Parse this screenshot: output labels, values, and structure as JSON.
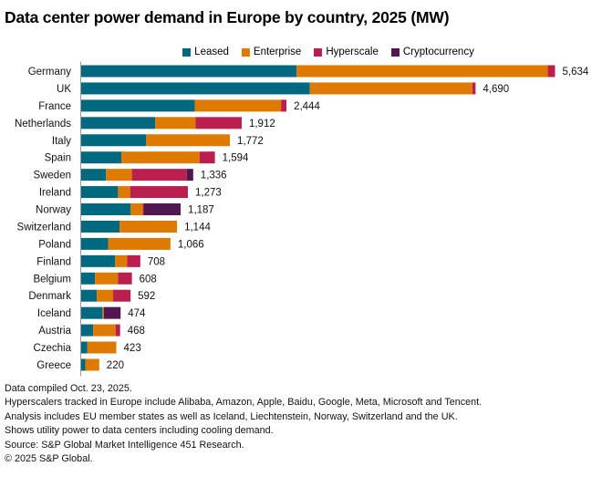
{
  "chart_data": {
    "type": "bar",
    "orientation": "horizontal",
    "stacked": true,
    "title": "Data center power demand in Europe by country, 2025 (MW)",
    "legend_position": "top-center",
    "categories": [
      "Germany",
      "UK",
      "France",
      "Netherlands",
      "Italy",
      "Spain",
      "Sweden",
      "Ireland",
      "Norway",
      "Switzerland",
      "Poland",
      "Finland",
      "Belgium",
      "Denmark",
      "Iceland",
      "Austria",
      "Czechia",
      "Greece"
    ],
    "totals": [
      "5,634",
      "4,690",
      "2,444",
      "1,912",
      "1,772",
      "1,594",
      "1,336",
      "1,273",
      "1,187",
      "1,144",
      "1,066",
      "708",
      "608",
      "592",
      "474",
      "468",
      "423",
      "220"
    ],
    "total_values": [
      5634,
      4690,
      2444,
      1912,
      1772,
      1594,
      1336,
      1273,
      1187,
      1144,
      1066,
      708,
      608,
      592,
      474,
      468,
      423,
      220
    ],
    "series": [
      {
        "name": "Leased",
        "color": "#00687f",
        "values": [
          2563,
          2722,
          1354,
          886,
          778,
          482,
          299,
          443,
          594,
          461,
          328,
          407,
          169,
          191,
          259,
          148,
          79,
          54
        ]
      },
      {
        "name": "Enterprise",
        "color": "#de7a00",
        "values": [
          2985,
          1930,
          1026,
          478,
          994,
          929,
          309,
          144,
          144,
          683,
          738,
          144,
          274,
          194,
          15,
          266,
          344,
          166
        ]
      },
      {
        "name": "Hyperscale",
        "color": "#bb1f4e",
        "values": [
          86,
          38,
          64,
          548,
          0,
          183,
          652,
          686,
          10,
          0,
          0,
          157,
          165,
          207,
          0,
          54,
          0,
          0
        ]
      },
      {
        "name": "Cryptocurrency",
        "color": "#521650",
        "values": [
          0,
          0,
          0,
          0,
          0,
          0,
          76,
          0,
          439,
          0,
          0,
          0,
          0,
          0,
          200,
          0,
          0,
          0
        ]
      }
    ],
    "xlim": [
      0,
      5634
    ]
  },
  "notes": [
    "Data compiled Oct. 23, 2025.",
    "Hyperscalers tracked in Europe include Alibaba, Amazon, Apple, Baidu, Google, Meta, Microsoft and Tencent.",
    "Analysis includes EU member states as well as Iceland, Liechtenstein, Norway, Switzerland and the UK.",
    "Shows utility power to data centers including cooling demand.",
    "Source: S&P Global Market Intelligence 451 Research.",
    "© 2025 S&P Global."
  ]
}
